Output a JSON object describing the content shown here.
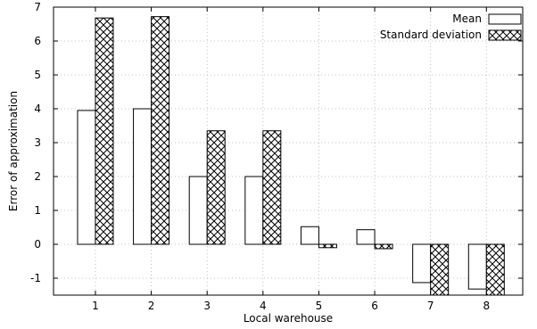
{
  "chart_data": {
    "type": "bar",
    "categories": [
      "1",
      "2",
      "3",
      "4",
      "5",
      "6",
      "7",
      "8"
    ],
    "series": [
      {
        "name": "Mean",
        "values": [
          3.95,
          4.0,
          2.0,
          2.0,
          0.52,
          0.43,
          -1.13,
          -1.32
        ],
        "pattern": "solid",
        "color": "#ffffff"
      },
      {
        "name": "Standard deviation",
        "values": [
          6.68,
          6.72,
          3.35,
          3.35,
          -0.1,
          -0.13,
          -1.5,
          -1.5
        ],
        "pattern": "crosshatch",
        "color": "#ffffff"
      }
    ],
    "xlabel": "Local warehouse",
    "ylabel": "Error of approximation",
    "ylim": [
      -1.5,
      7
    ],
    "yticks": [
      "-1",
      "0",
      "1",
      "2",
      "3",
      "4",
      "5",
      "6",
      "7"
    ],
    "grid": true,
    "legend_position": "top-right"
  }
}
